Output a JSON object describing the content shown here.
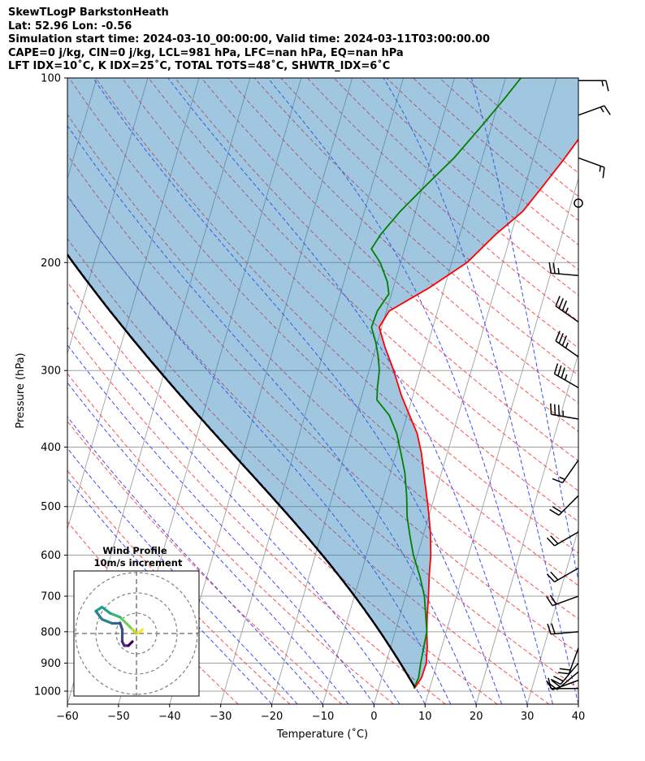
{
  "header": {
    "lines": [
      "SkewTLogP BarkstonHeath",
      "Lat: 52.96   Lon: -0.56",
      "Simulation start time: 2024-03-10_00:00:00, Valid time: 2024-03-11T03:00:00.00",
      "CAPE=0 j/kg, CIN=0 j/kg, LCL=981 hPa, LFC=nan hPa, EQ=nan hPa",
      "LFT IDX=10˚C, K IDX=25˚C, TOTAL TOTS=48˚C, SHWTR_IDX=6˚C"
    ]
  },
  "chart_data": [
    {
      "type": "line",
      "chart_kind": "skew-t log-p",
      "xlabel": "Temperature (˚C)",
      "ylabel": "Pressure (hPa)",
      "xlim": [
        -60,
        40
      ],
      "ylim": [
        1050,
        100
      ],
      "y_scale": "log",
      "grid": true,
      "x_ticks": [
        -60,
        -50,
        -40,
        -30,
        -20,
        -10,
        0,
        10,
        20,
        30,
        40
      ],
      "x_tick_labels": [
        "−60",
        "−50",
        "−40",
        "−30",
        "−20",
        "−10",
        "0",
        "10",
        "20",
        "30",
        "40"
      ],
      "y_ticks": [
        1000,
        900,
        800,
        700,
        600,
        500,
        400,
        300,
        200,
        100
      ],
      "y_tick_labels": [
        "1000",
        "900",
        "800",
        "700",
        "600",
        "500",
        "400",
        "300",
        "200",
        "100"
      ],
      "background_lines": {
        "dry_adiabats_color": "#ff4d4d",
        "moist_adiabats_color": "#3b4cff",
        "mixing_ratio_color": "#a0a0a0",
        "isotherm_color": "#a0a0a0"
      },
      "series": [
        {
          "role": "temperature",
          "color": "#ff0000",
          "points": [
            [
              7.0,
              990
            ],
            [
              7.8,
              950
            ],
            [
              7.9,
              900
            ],
            [
              7.2,
              850
            ],
            [
              6.2,
              800
            ],
            [
              5.3,
              750
            ],
            [
              4.5,
              700
            ],
            [
              3.5,
              650
            ],
            [
              2.6,
              600
            ],
            [
              1.2,
              550
            ],
            [
              -0.7,
              500
            ],
            [
              -3.0,
              450
            ],
            [
              -5.0,
              410
            ],
            [
              -7.0,
              380
            ],
            [
              -9.0,
              360
            ],
            [
              -12.2,
              330
            ],
            [
              -15.2,
              300
            ],
            [
              -18.2,
              275
            ],
            [
              -20.5,
              255
            ],
            [
              -19.5,
              240
            ],
            [
              -13.0,
              220
            ],
            [
              -7.0,
              200
            ],
            [
              -3.0,
              180
            ],
            [
              1.0,
              165
            ],
            [
              3.5,
              150
            ],
            [
              6.0,
              136
            ],
            [
              8.5,
              122
            ],
            [
              10.0,
              112
            ],
            [
              11.0,
              103
            ],
            [
              11.5,
              100
            ]
          ]
        },
        {
          "role": "dewpoint",
          "color": "#008000",
          "points": [
            [
              6.9,
              990
            ],
            [
              7.2,
              950
            ],
            [
              6.8,
              900
            ],
            [
              6.5,
              850
            ],
            [
              6.2,
              800
            ],
            [
              5.0,
              750
            ],
            [
              3.7,
              700
            ],
            [
              1.7,
              650
            ],
            [
              -0.8,
              600
            ],
            [
              -2.5,
              560
            ],
            [
              -4.2,
              520
            ],
            [
              -5.5,
              480
            ],
            [
              -7.2,
              440
            ],
            [
              -9.0,
              410
            ],
            [
              -11.0,
              380
            ],
            [
              -13.5,
              355
            ],
            [
              -16.8,
              335
            ],
            [
              -17.4,
              320
            ],
            [
              -18.0,
              300
            ],
            [
              -19.0,
              285
            ],
            [
              -20.3,
              270
            ],
            [
              -22.0,
              255
            ],
            [
              -21.8,
              240
            ],
            [
              -20.5,
              225
            ],
            [
              -21.5,
              215
            ],
            [
              -24.0,
              200
            ],
            [
              -26.5,
              190
            ],
            [
              -25.5,
              180
            ],
            [
              -23.0,
              165
            ],
            [
              -19.5,
              150
            ],
            [
              -15.5,
              135
            ],
            [
              -12.0,
              120
            ],
            [
              -9.0,
              108
            ],
            [
              -7.0,
              100
            ]
          ]
        },
        {
          "role": "parcel",
          "color": "#000000"
        }
      ],
      "wind_barbs": [
        {
          "p": 990,
          "speed": 10,
          "dir": 270
        },
        {
          "p": 960,
          "speed": 10,
          "dir": 250
        },
        {
          "p": 930,
          "speed": 20,
          "dir": 230
        },
        {
          "p": 900,
          "speed": 20,
          "dir": 220
        },
        {
          "p": 850,
          "speed": 20,
          "dir": 200
        },
        {
          "p": 800,
          "speed": 20,
          "dir": 265
        },
        {
          "p": 700,
          "speed": 20,
          "dir": 250
        },
        {
          "p": 630,
          "speed": 20,
          "dir": 240
        },
        {
          "p": 550,
          "speed": 20,
          "dir": 240
        },
        {
          "p": 480,
          "speed": 20,
          "dir": 225
        },
        {
          "p": 420,
          "speed": 15,
          "dir": 215
        },
        {
          "p": 360,
          "speed": 35,
          "dir": 280
        },
        {
          "p": 320,
          "speed": 35,
          "dir": 300
        },
        {
          "p": 285,
          "speed": 35,
          "dir": 305
        },
        {
          "p": 250,
          "speed": 35,
          "dir": 305
        },
        {
          "p": 210,
          "speed": 25,
          "dir": 275
        },
        {
          "p": 160,
          "speed": 0,
          "dir": 0
        },
        {
          "p": 135,
          "speed": 15,
          "dir": 110
        },
        {
          "p": 115,
          "speed": 15,
          "dir": 70
        },
        {
          "p": 101,
          "speed": 15,
          "dir": 90
        }
      ]
    },
    {
      "type": "line",
      "chart_kind": "hodograph",
      "title": "Wind Profile",
      "subtitle": "10m/s increment",
      "grid": true,
      "rings": [
        10,
        20,
        30
      ],
      "points": [
        [
          3,
          2
        ],
        [
          2,
          1
        ],
        [
          0,
          0
        ],
        [
          -1,
          1
        ],
        [
          -3,
          3
        ],
        [
          -5,
          5
        ],
        [
          -8,
          8
        ],
        [
          -13,
          10
        ],
        [
          -17,
          13
        ],
        [
          -20,
          11
        ],
        [
          -17,
          7
        ],
        [
          -12,
          5
        ],
        [
          -8,
          5
        ],
        [
          -7,
          2
        ],
        [
          -7,
          -4
        ],
        [
          -6,
          -6
        ],
        [
          -4,
          -6
        ],
        [
          -2,
          -4
        ]
      ],
      "colormap": [
        "#fde725",
        "#b5de2b",
        "#6ece58",
        "#35b779",
        "#1f9e89",
        "#26828e",
        "#31688e",
        "#3e4989",
        "#482878",
        "#440154"
      ]
    }
  ]
}
